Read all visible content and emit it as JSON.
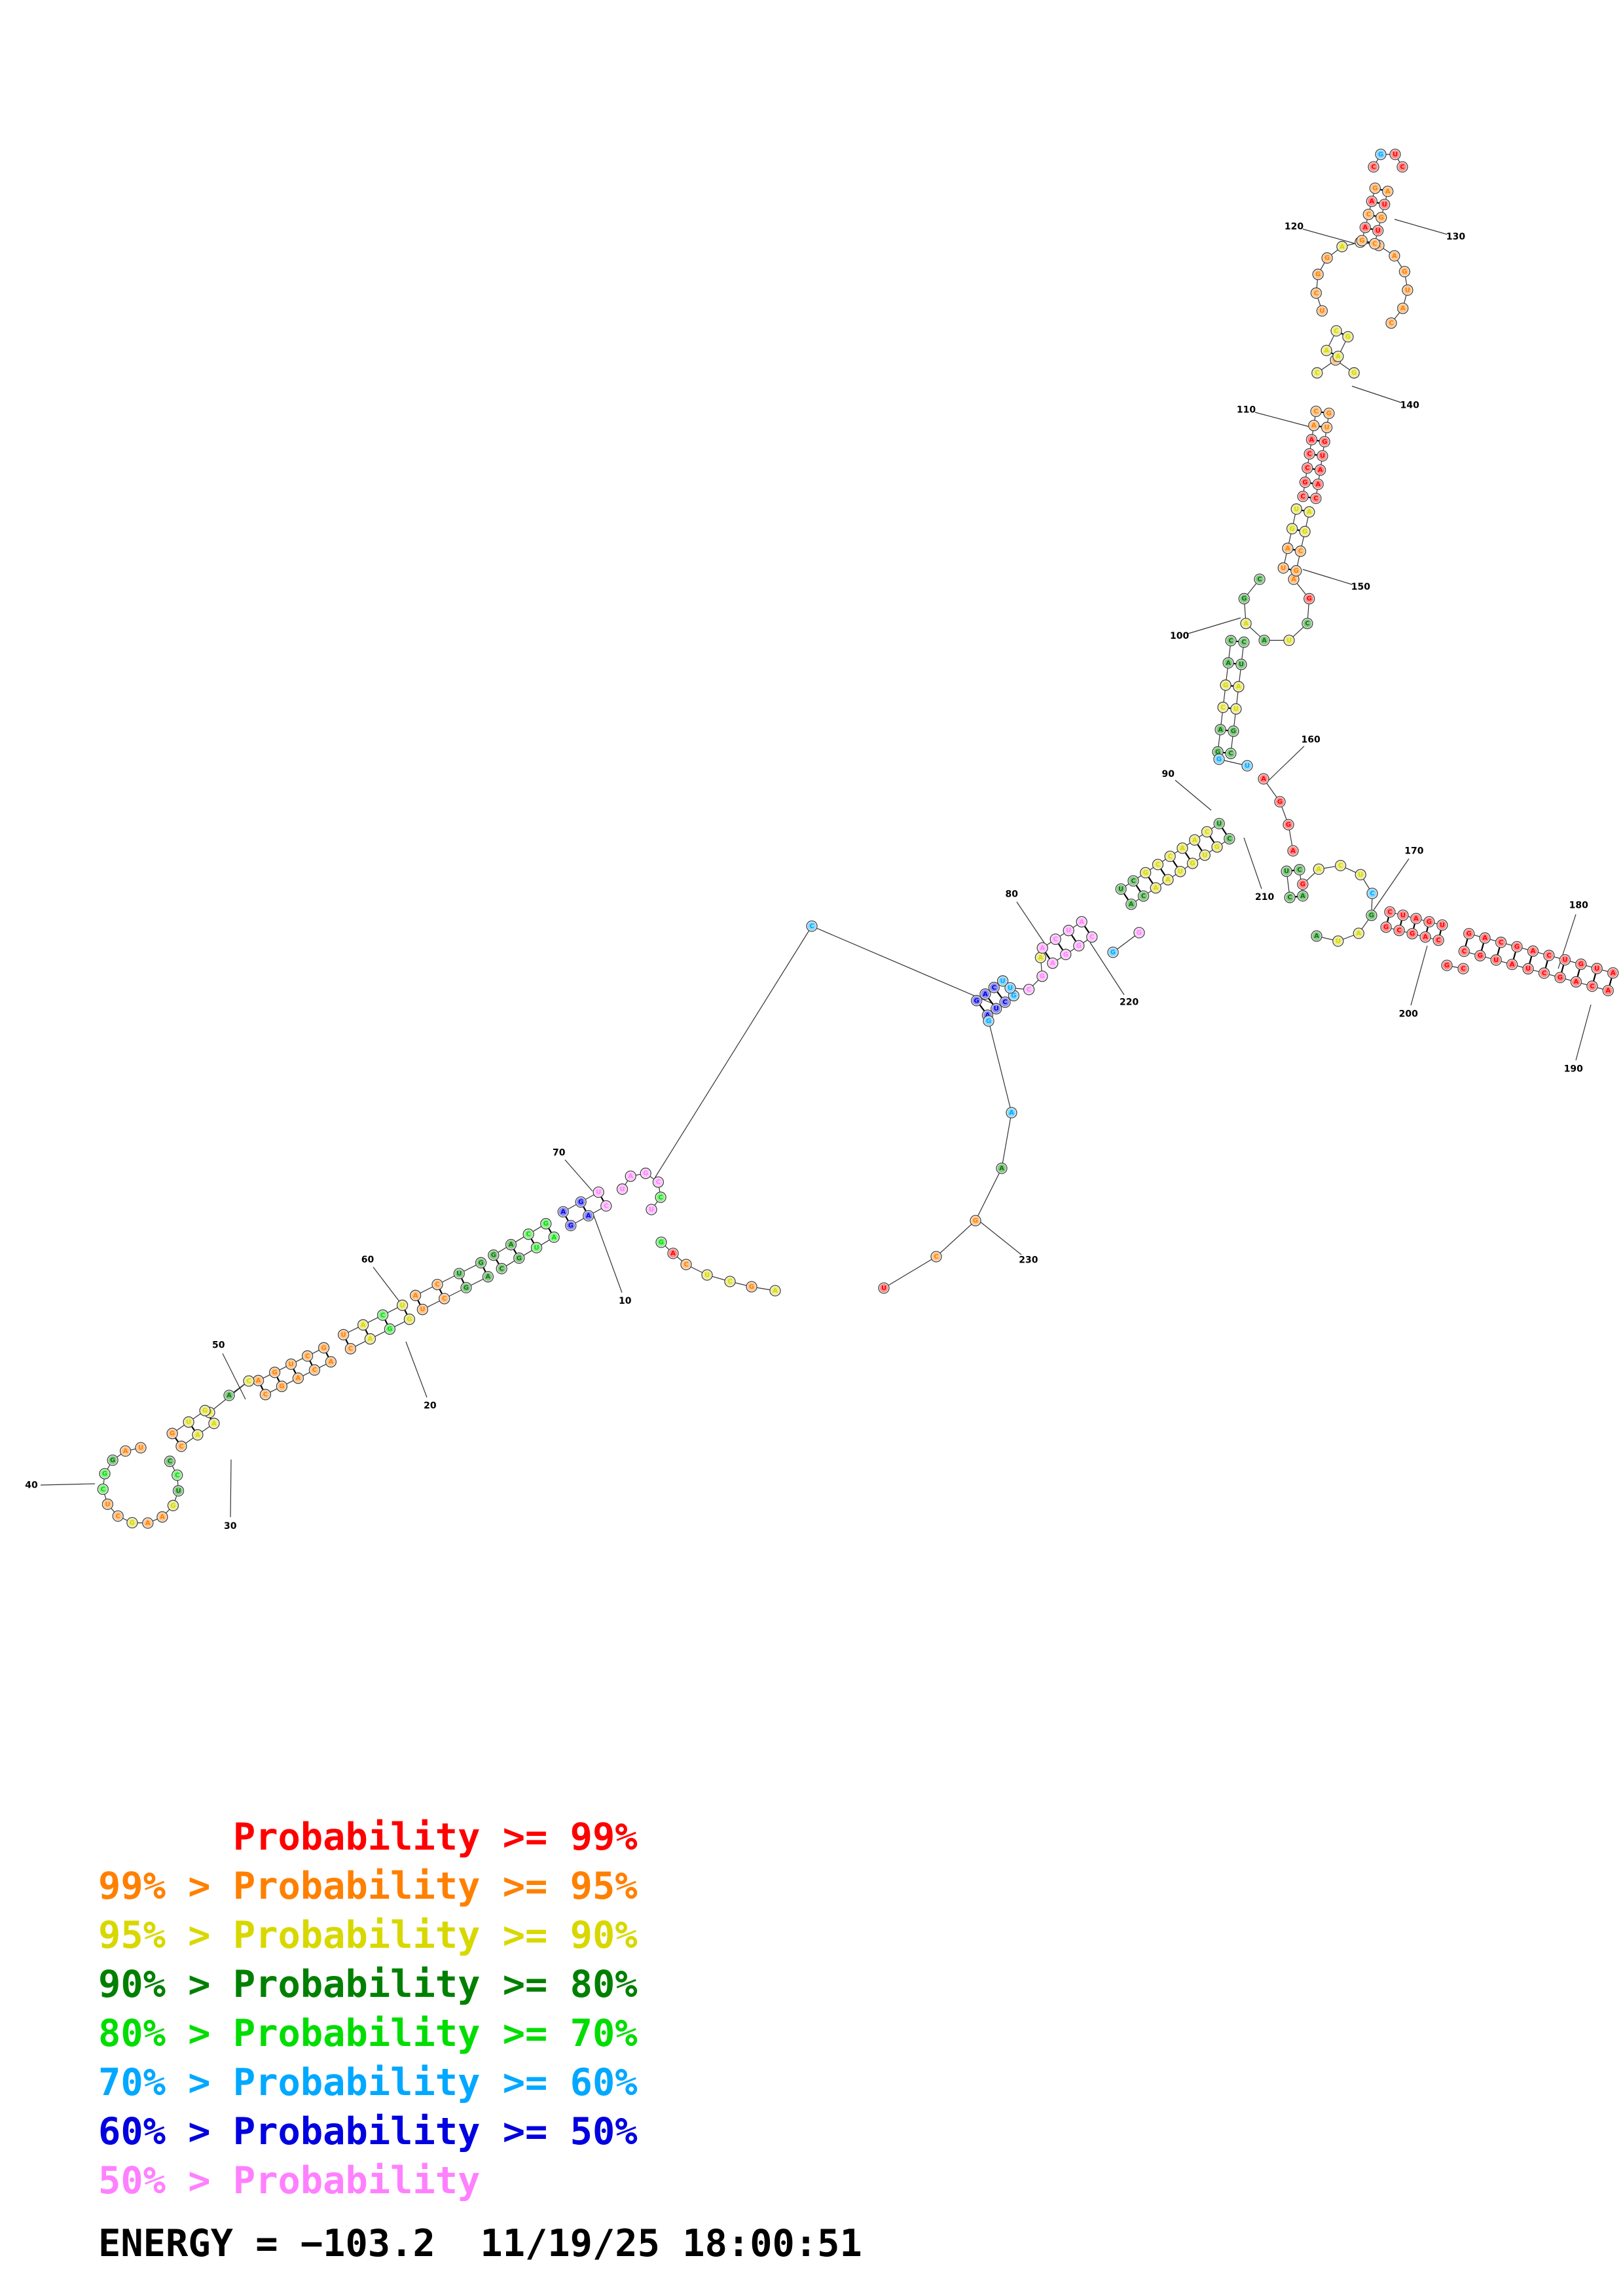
{
  "palette": {
    "p99": "#ff0000",
    "p95": "#ff8000",
    "p90": "#d8d800",
    "p80": "#008000",
    "p70": "#00dd00",
    "p60": "#00a8ff",
    "p50": "#0000e0",
    "plow": "#ff80ff"
  },
  "legend": [
    {
      "lhs": "",
      "rhs": "Probability >= 99%",
      "color": "#ff0000"
    },
    {
      "lhs": "99% > ",
      "rhs": "Probability >= 95%",
      "color": "#ff8000"
    },
    {
      "lhs": "95% > ",
      "rhs": "Probability >= 90%",
      "color": "#d8d800"
    },
    {
      "lhs": "90% > ",
      "rhs": "Probability >= 80%",
      "color": "#008000"
    },
    {
      "lhs": "80% > ",
      "rhs": "Probability >= 70%",
      "color": "#00dd00"
    },
    {
      "lhs": "70% > ",
      "rhs": "Probability >= 60%",
      "color": "#00a8ff"
    },
    {
      "lhs": "60% > ",
      "rhs": "Probability >= 50%",
      "color": "#0000e0"
    },
    {
      "lhs": "50% > ",
      "rhs": "Probability",
      "color": "#ff80ff"
    }
  ],
  "footer": {
    "energy_label": "ENERGY = ",
    "energy": "−103.2",
    "timestamp": "11/19/25 18:00:51"
  },
  "index_labels": [
    "10",
    "20",
    "30",
    "40",
    "50",
    "60",
    "70",
    "80",
    "90",
    "100",
    "110",
    "120",
    "130",
    "140",
    "150",
    "160",
    "170",
    "180",
    "190",
    "200",
    "210",
    "220",
    "230"
  ]
}
